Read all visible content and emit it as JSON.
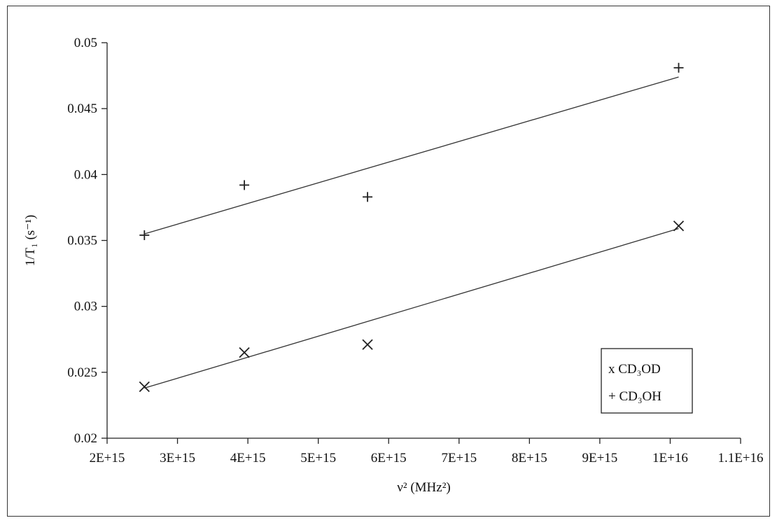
{
  "chart_data": {
    "type": "scatter",
    "title": "",
    "xlabel": "ν² (MHz²)",
    "ylabel": "1/T₁ (s⁻¹)",
    "xlim": [
      2000000000000000.0,
      1.1e+16
    ],
    "ylim": [
      0.02,
      0.05
    ],
    "x_ticks": [
      2000000000000000.0,
      3000000000000000.0,
      4000000000000000.0,
      5000000000000000.0,
      6000000000000000.0,
      7000000000000000.0,
      8000000000000000.0,
      9000000000000000.0,
      1e+16,
      1.1e+16
    ],
    "x_tick_labels": [
      "2E+15",
      "3E+15",
      "4E+15",
      "5E+15",
      "6E+15",
      "7E+15",
      "8E+15",
      "9E+15",
      "1E+16",
      "1.1E+16"
    ],
    "y_ticks": [
      0.02,
      0.025,
      0.03,
      0.035,
      0.04,
      0.045,
      0.05
    ],
    "y_tick_labels": [
      "0.02",
      "0.025",
      "0.03",
      "0.035",
      "0.04",
      "0.045",
      "0.05"
    ],
    "grid": false,
    "legend_position": "right",
    "series": [
      {
        "name": "x CD₃OD",
        "marker": "x",
        "x": [
          2530000000000000.0,
          3950000000000000.0,
          5700000000000000.0,
          1.012e+16
        ],
        "y": [
          0.0239,
          0.0265,
          0.0271,
          0.0361
        ],
        "trendline": [
          [
            2530000000000000.0,
            0.0238
          ],
          [
            1.012e+16,
            0.0359
          ]
        ]
      },
      {
        "name": "+ CD₃OH",
        "marker": "+",
        "x": [
          2530000000000000.0,
          3950000000000000.0,
          5700000000000000.0,
          1.012e+16
        ],
        "y": [
          0.0354,
          0.0392,
          0.0383,
          0.0481
        ],
        "trendline": [
          [
            2530000000000000.0,
            0.0355
          ],
          [
            1.012e+16,
            0.0474
          ]
        ]
      }
    ]
  }
}
